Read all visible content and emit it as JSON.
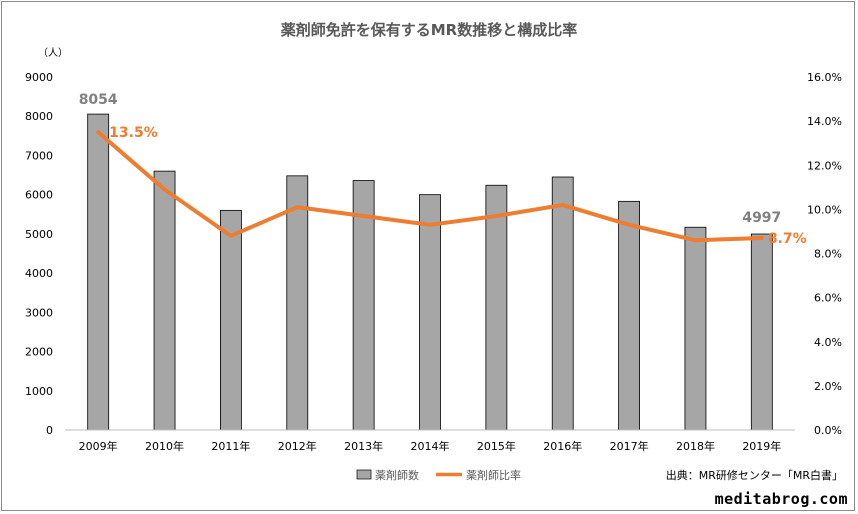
{
  "chart_data": {
    "type": "bar+line",
    "title": "薬剤師免許を保有するMR数推移と構成比率",
    "y_unit_label": "（人）",
    "categories": [
      "2009年",
      "2010年",
      "2011年",
      "2012年",
      "2013年",
      "2014年",
      "2015年",
      "2016年",
      "2017年",
      "2018年",
      "2019年"
    ],
    "series": [
      {
        "name": "薬剤師数",
        "type": "bar",
        "axis": "left",
        "color": "#A6A6A6",
        "values": [
          8054,
          6600,
          5600,
          6480,
          6360,
          6000,
          6240,
          6450,
          5830,
          5170,
          4997
        ]
      },
      {
        "name": "薬剤師比率",
        "type": "line",
        "axis": "right",
        "color": "#ED7D31",
        "values": [
          13.5,
          10.9,
          8.8,
          10.1,
          9.7,
          9.3,
          9.7,
          10.2,
          9.3,
          8.6,
          8.7
        ]
      }
    ],
    "ylim_left": [
      0,
      9000
    ],
    "yticks_left": [
      "0",
      "1000",
      "2000",
      "3000",
      "4000",
      "5000",
      "6000",
      "7000",
      "8000",
      "9000"
    ],
    "ylim_right": [
      0,
      16
    ],
    "yticks_right": [
      "0.0%",
      "2.0%",
      "4.0%",
      "6.0%",
      "8.0%",
      "10.0%",
      "12.0%",
      "14.0%",
      "16.0%"
    ],
    "data_labels": {
      "bar_first": "8054",
      "bar_last": "4997",
      "line_first": "13.5%",
      "line_last": "8.7%"
    },
    "grid": false,
    "legend_position": "bottom"
  },
  "source": "出典：MR研修センター「MR白書」",
  "site": "meditabrog.com"
}
